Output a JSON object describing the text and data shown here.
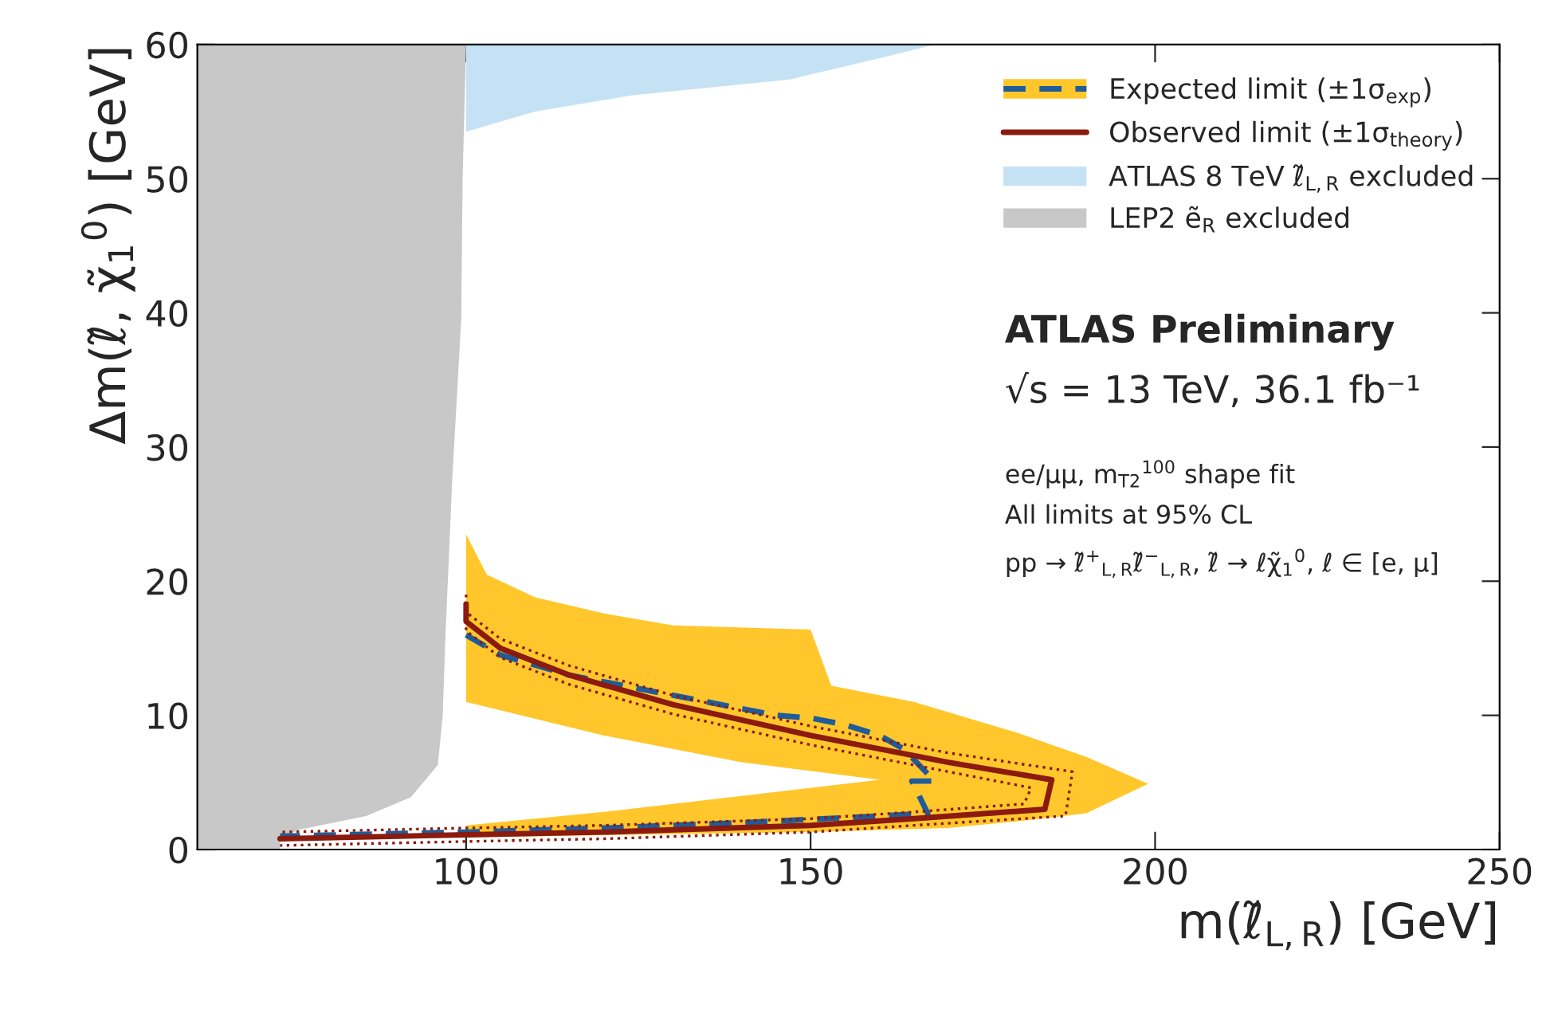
{
  "chart_data": {
    "type": "line",
    "xlabel": "m(ℓ̃$_{L,R}$) [GeV]",
    "ylabel": "Δm(ℓ̃, χ̃$_{1}$$^{0}$) [GeV]",
    "xlim": [
      61,
      250
    ],
    "xticks": [
      100,
      150,
      200,
      250
    ],
    "ylim": [
      0,
      60
    ],
    "yticks": [
      0,
      10,
      20,
      30,
      40,
      50,
      60
    ],
    "grid": false,
    "legend": "top right",
    "series": [
      {
        "type": "area",
        "color": "#ffc72c",
        "x": [
          100,
          103,
          110,
          120,
          130,
          150,
          153,
          165,
          180,
          190,
          199,
          190,
          180,
          170,
          150,
          100,
          100,
          120,
          140,
          160,
          140,
          120,
          100
        ],
        "values": [
          23.5,
          20.5,
          18.8,
          17.6,
          16.7,
          16.4,
          12.2,
          11,
          8.7,
          6.9,
          4.9,
          2.7,
          2.1,
          1.6,
          1.3,
          0.9,
          1.8,
          2.8,
          4.0,
          5.2,
          6.5,
          8.5,
          11
        ]
      },
      {
        "name": "Expected limit (±1σ$_{exp}$)",
        "color": "#1f5c99",
        "line_style": "dashed",
        "x": [
          100,
          105,
          115,
          130,
          145,
          150,
          155,
          160,
          163.5,
          168,
          164.7,
          167,
          160,
          140,
          120,
          100,
          73
        ],
        "values": [
          16,
          14.5,
          13,
          11.5,
          10,
          9.8,
          9.3,
          8.5,
          7.5,
          5.1,
          5.1,
          2.7,
          2.5,
          2.0,
          1.6,
          1.3,
          1.0
        ]
      },
      {
        "color": "#8b1a0f",
        "line_style": "dotted",
        "x": [
          100,
          100,
          105,
          115,
          130,
          150,
          170,
          188,
          187,
          165,
          150,
          120,
          100,
          73
        ],
        "values": [
          19,
          17.7,
          15.7,
          13.7,
          11.5,
          9.2,
          7.2,
          5.8,
          2.5,
          1.8,
          1.3,
          0.8,
          0.6,
          0.3
        ]
      },
      {
        "color": "#8b1a0f",
        "line_style": "dotted",
        "x": [
          100,
          100,
          105,
          115,
          130,
          150,
          170,
          182,
          181,
          165,
          150,
          120,
          100,
          73
        ],
        "values": [
          17.6,
          16.3,
          14.3,
          12.3,
          10.1,
          7.8,
          5.8,
          4.6,
          3.4,
          2.8,
          2.3,
          1.8,
          1.6,
          1.3
        ]
      },
      {
        "name": "Observed limit (±1σ$_{theory}$)",
        "color": "#8b1a0f",
        "line_style": "solid",
        "x": [
          100,
          100,
          105,
          115,
          130,
          150,
          170,
          185,
          184,
          165,
          150,
          120,
          100,
          73
        ],
        "values": [
          18.3,
          17,
          15,
          13,
          10.8,
          8.5,
          6.5,
          5.2,
          3,
          2.3,
          1.8,
          1.3,
          1.1,
          0.8
        ]
      },
      {
        "type": "area",
        "name": "ATLAS 8 TeV ℓ̃$_{L,R}$ excluded",
        "color": "#c5e2f5",
        "x": [
          100,
          100,
          110,
          124,
          147,
          161,
          168
        ],
        "values": [
          60,
          53.5,
          55,
          56.2,
          57.4,
          59.1,
          60
        ]
      },
      {
        "type": "area",
        "name": "LEP2 ẽ$_{R}$ excluded",
        "color": "#c8c8c8",
        "x": [
          61,
          61,
          100,
          99.5,
          99.3,
          98,
          97,
          96.6,
          95.9,
          92,
          85.5,
          76,
          73,
          73
        ],
        "values": [
          0,
          60,
          60,
          50,
          39.5,
          27.7,
          15.8,
          9.9,
          6.3,
          3.9,
          2.5,
          1.5,
          0.9,
          0
        ]
      }
    ],
    "annotations": [
      "ATLAS Preliminary",
      "√s = 13 TeV, 36.1 fb⁻¹",
      "ee/μμ, m$_{T2}$$^{100}$ shape fit",
      "All limits at 95% CL",
      "pp → ℓ̃$^{+}$$_{L,R}$ℓ̃$^{−}$$_{L,R}$, ℓ̃ → ℓχ̃$_{1}$$^{0}$, ℓ ∈ [e, μ]"
    ]
  }
}
